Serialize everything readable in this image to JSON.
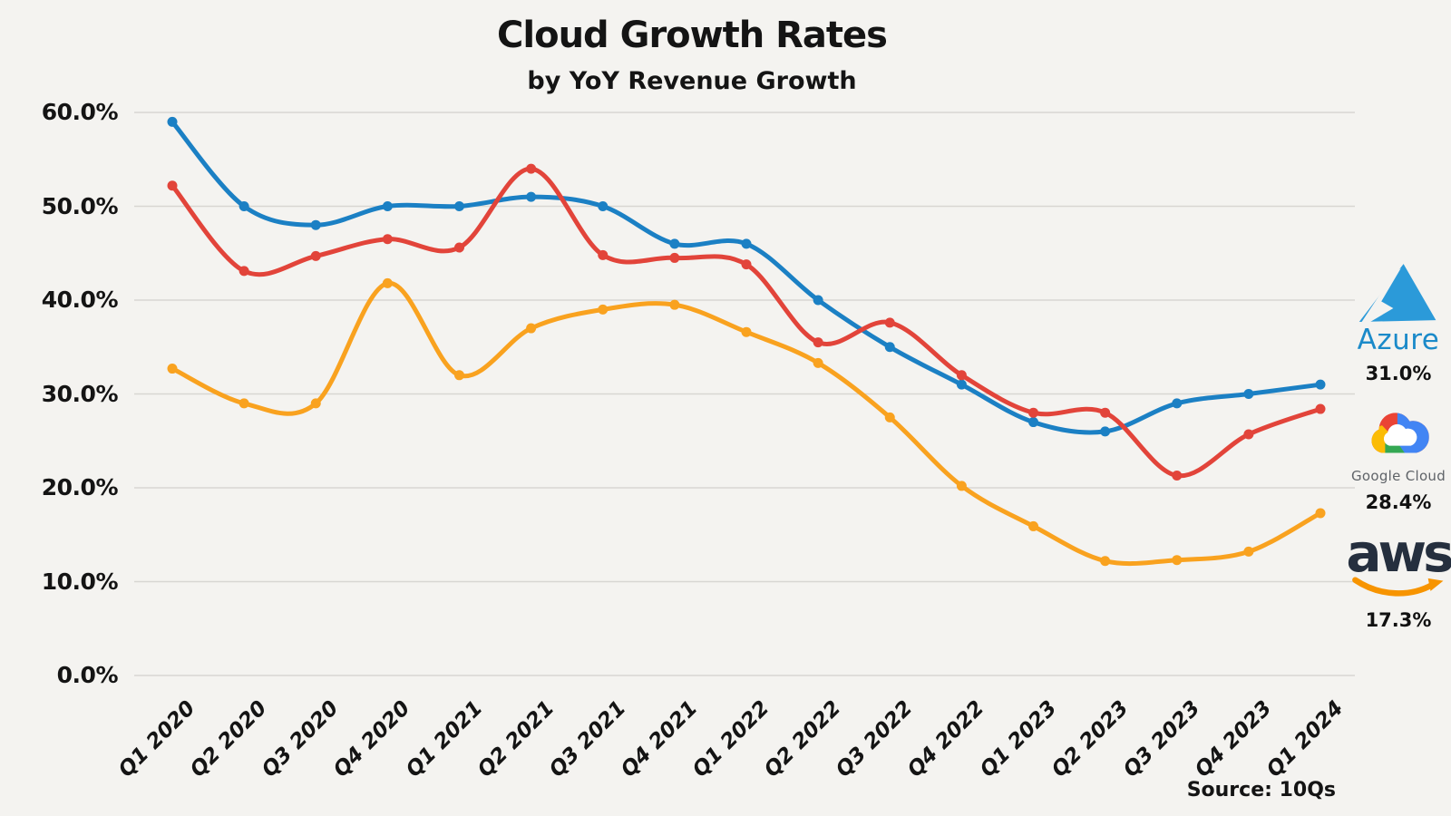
{
  "title": "Cloud Growth Rates",
  "subtitle": "by YoY Revenue Growth",
  "source_note": "Source: 10Qs",
  "colors": {
    "background": "#f4f3f0",
    "grid": "#d8d6d2",
    "text": "#141414",
    "azure_line": "#1b80c4",
    "google_line": "#e2443a",
    "aws_line": "#f9a21f",
    "azure_brand": "#1b8ac9",
    "google_text": "#5f6368",
    "aws_navy": "#252f3e",
    "aws_orange": "#f79400"
  },
  "y_axis": {
    "tick_labels": [
      "60.0%",
      "50.0%",
      "40.0%",
      "30.0%",
      "20.0%",
      "10.0%",
      "0.0%"
    ],
    "tick_values": [
      60,
      50,
      40,
      30,
      20,
      10,
      0
    ]
  },
  "chart_data": {
    "type": "line",
    "title": "Cloud Growth Rates",
    "subtitle": "by YoY Revenue Growth",
    "categories": [
      "Q1 2020",
      "Q2 2020",
      "Q3 2020",
      "Q4 2020",
      "Q1 2021",
      "Q2 2021",
      "Q3 2021",
      "Q4 2021",
      "Q1 2022",
      "Q2 2022",
      "Q3 2022",
      "Q4 2022",
      "Q1 2023",
      "Q2 2023",
      "Q3 2023",
      "Q4 2023",
      "Q1 2024"
    ],
    "series": [
      {
        "name": "Azure",
        "color": "#1b80c4",
        "values": [
          59.0,
          50.0,
          48.0,
          50.0,
          50.0,
          51.0,
          50.0,
          46.0,
          46.0,
          40.0,
          35.0,
          31.0,
          27.0,
          26.0,
          29.0,
          30.0,
          31.0
        ]
      },
      {
        "name": "Google Cloud",
        "color": "#e2443a",
        "values": [
          52.2,
          43.1,
          44.7,
          46.5,
          45.6,
          54.0,
          44.8,
          44.5,
          43.8,
          35.5,
          37.6,
          32.0,
          28.0,
          28.0,
          21.3,
          25.7,
          28.4
        ]
      },
      {
        "name": "AWS",
        "color": "#f9a21f",
        "values": [
          32.7,
          29.0,
          29.0,
          41.8,
          32.0,
          37.0,
          39.0,
          39.5,
          36.6,
          33.3,
          27.5,
          20.2,
          15.9,
          12.2,
          12.3,
          13.2,
          17.3
        ]
      }
    ],
    "ylim": [
      0,
      60
    ],
    "y_tick_step": 10,
    "grid": true,
    "line_smoothing": true,
    "markers": true,
    "legend_position": "right"
  },
  "legend": {
    "items": [
      {
        "brand": "Azure",
        "value_label": "31.0%"
      },
      {
        "brand": "Google Cloud",
        "value_label": "28.4%"
      },
      {
        "brand": "aws",
        "value_label": "17.3%"
      }
    ]
  }
}
